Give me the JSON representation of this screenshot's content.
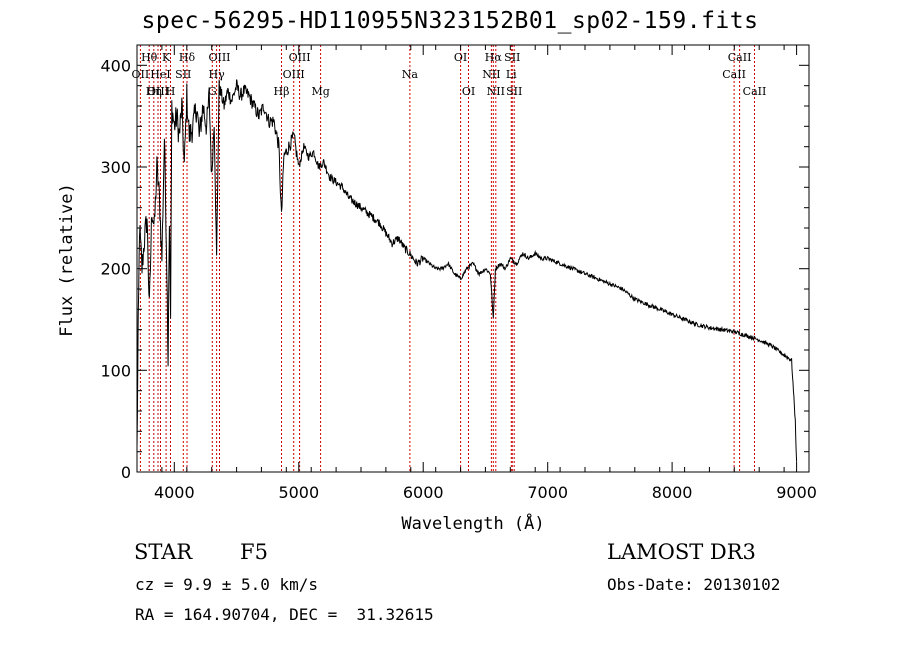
{
  "chart_data": {
    "type": "line",
    "title": "spec-56295-HD110955N323152B01_sp02-159.fits",
    "xlabel": "Wavelength (Å)",
    "ylabel": "Flux (relative)",
    "xlim": [
      3700,
      9100
    ],
    "ylim": [
      0,
      420
    ],
    "xticks": [
      4000,
      5000,
      6000,
      7000,
      8000,
      9000
    ],
    "yticks": [
      0,
      100,
      200,
      300,
      400
    ],
    "grid": false,
    "spectrum_color": "#000000",
    "line_marker_color": "#cc0000",
    "series": [
      {
        "x": [
          3700,
          3710,
          3720,
          3740,
          3760,
          3780,
          3800,
          3820,
          3840,
          3860,
          3880,
          3900,
          3920,
          3940,
          3950,
          3960,
          3970,
          3980,
          4000,
          4020,
          4040,
          4060,
          4080,
          4100,
          4120,
          4150,
          4180,
          4200,
          4230,
          4260,
          4280,
          4300,
          4320,
          4340,
          4360,
          4380,
          4400,
          4430,
          4460,
          4500,
          4530,
          4560,
          4600,
          4640,
          4680,
          4720,
          4760,
          4800,
          4840,
          4861,
          4880,
          4920,
          4960,
          5000,
          5040,
          5080,
          5120,
          5160,
          5200,
          5250,
          5300,
          5350,
          5400,
          5450,
          5500,
          5550,
          5600,
          5650,
          5700,
          5750,
          5800,
          5850,
          5890,
          5950,
          6000,
          6050,
          6100,
          6150,
          6200,
          6250,
          6300,
          6350,
          6400,
          6450,
          6500,
          6540,
          6563,
          6580,
          6620,
          6660,
          6700,
          6750,
          6800,
          6850,
          6900,
          6950,
          7000,
          7100,
          7200,
          7300,
          7400,
          7500,
          7600,
          7700,
          7800,
          7900,
          8000,
          8100,
          8200,
          8300,
          8400,
          8500,
          8600,
          8700,
          8800,
          8900,
          8960,
          8990,
          9000
        ],
        "y": [
          20,
          140,
          240,
          200,
          230,
          250,
          160,
          260,
          240,
          300,
          270,
          210,
          330,
          200,
          110,
          250,
          150,
          360,
          340,
          350,
          330,
          360,
          300,
          370,
          330,
          340,
          360,
          330,
          360,
          340,
          370,
          290,
          345,
          210,
          380,
          370,
          360,
          375,
          365,
          380,
          370,
          375,
          370,
          360,
          350,
          360,
          345,
          345,
          320,
          250,
          310,
          320,
          330,
          300,
          320,
          310,
          315,
          300,
          305,
          290,
          285,
          280,
          270,
          265,
          260,
          255,
          250,
          245,
          235,
          225,
          230,
          220,
          215,
          205,
          210,
          205,
          200,
          200,
          205,
          195,
          190,
          200,
          205,
          195,
          200,
          195,
          150,
          200,
          205,
          200,
          210,
          205,
          215,
          210,
          215,
          210,
          210,
          205,
          200,
          195,
          190,
          185,
          180,
          170,
          165,
          160,
          155,
          150,
          145,
          142,
          140,
          138,
          134,
          130,
          124,
          115,
          110,
          50,
          10
        ]
      }
    ],
    "spectral_lines": [
      {
        "label": "Hθ",
        "wavelength": 3798,
        "row": 1
      },
      {
        "label": "OII",
        "wavelength": 3727,
        "row": 2
      },
      {
        "label": "OIII",
        "wavelength": 3869,
        "row": 3
      },
      {
        "label": "Hη",
        "wavelength": 3835,
        "row": 3
      },
      {
        "label": "HeI",
        "wavelength": 3889,
        "row": 2
      },
      {
        "label": "K",
        "wavelength": 3934,
        "row": 1
      },
      {
        "label": "H",
        "wavelength": 3969,
        "row": 3
      },
      {
        "label": "Hδ",
        "wavelength": 4102,
        "row": 1
      },
      {
        "label": "SII",
        "wavelength": 4072,
        "row": 2
      },
      {
        "label": "OIII",
        "wavelength": 4363,
        "row": 1
      },
      {
        "label": "Hγ",
        "wavelength": 4340,
        "row": 2
      },
      {
        "label": "G",
        "wavelength": 4305,
        "row": 3
      },
      {
        "label": "Hβ",
        "wavelength": 4861,
        "row": 3
      },
      {
        "label": "OIII",
        "wavelength": 5007,
        "row": 1
      },
      {
        "label": "OIII",
        "wavelength": 4959,
        "row": 2
      },
      {
        "label": "Mg",
        "wavelength": 5175,
        "row": 3
      },
      {
        "label": "Na",
        "wavelength": 5893,
        "row": 2
      },
      {
        "label": "OI",
        "wavelength": 6300,
        "row": 1
      },
      {
        "label": "OI",
        "wavelength": 6364,
        "row": 3
      },
      {
        "label": "Hα",
        "wavelength": 6563,
        "row": 1
      },
      {
        "label": "SII",
        "wavelength": 6716,
        "row": 1
      },
      {
        "label": "NII",
        "wavelength": 6548,
        "row": 2
      },
      {
        "label": "Li",
        "wavelength": 6708,
        "row": 2
      },
      {
        "label": "NII",
        "wavelength": 6583,
        "row": 3
      },
      {
        "label": "SII",
        "wavelength": 6731,
        "row": 3
      },
      {
        "label": "CaII",
        "wavelength": 8542,
        "row": 1
      },
      {
        "label": "CaII",
        "wavelength": 8498,
        "row": 2
      },
      {
        "label": "CaII",
        "wavelength": 8662,
        "row": 3
      }
    ]
  },
  "footer": {
    "object_class": "STAR",
    "subclass": "F5",
    "survey": "LAMOST DR3",
    "redshift": "cz = 9.9 ± 5.0 km/s",
    "obs_date": "Obs-Date: 20130102",
    "coords": "RA = 164.90704, DEC =  31.32615"
  }
}
